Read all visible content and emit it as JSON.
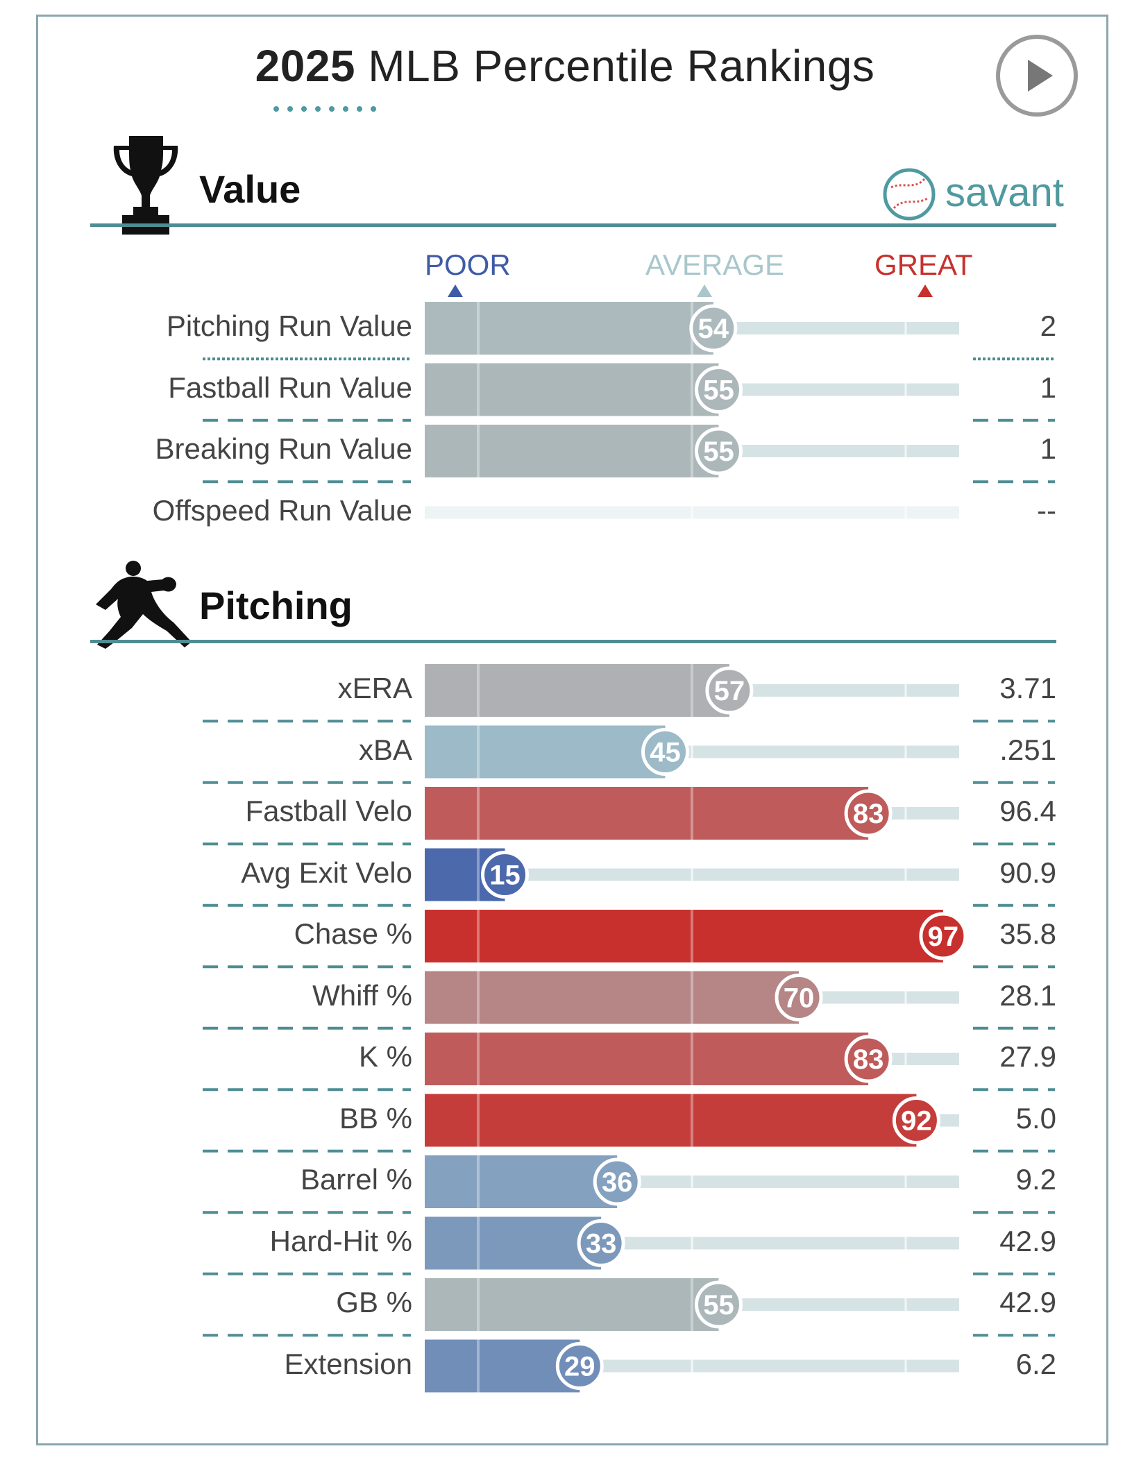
{
  "header": {
    "title_year": "2025",
    "title_rest": " MLB Percentile Rankings",
    "play_button": "play-icon"
  },
  "branding": {
    "logo_icon": "baseball-icon",
    "logo_text": "savant"
  },
  "colors": {
    "accent": "#4f8d94",
    "poor": "#3f5ba8",
    "average": "#a9c7cb",
    "great": "#c7302d",
    "track": "#d6e3e5"
  },
  "scale": {
    "poor": "POOR",
    "average": "AVERAGE",
    "great": "GREAT"
  },
  "chart_data": [
    {
      "type": "bar",
      "title": "Value",
      "section_icon": "trophy-icon",
      "xlim": [
        0,
        100
      ],
      "categories": [
        "Pitching Run Value",
        "Fastball Run Value",
        "Breaking Run Value",
        "Offspeed Run Value"
      ],
      "percentiles": [
        54,
        55,
        55,
        null
      ],
      "values": [
        "2",
        "1",
        "1",
        "--"
      ]
    },
    {
      "type": "bar",
      "title": "Pitching",
      "section_icon": "pitcher-icon",
      "xlim": [
        0,
        100
      ],
      "categories": [
        "xERA",
        "xBA",
        "Fastball Velo",
        "Avg Exit Velo",
        "Chase %",
        "Whiff %",
        "K %",
        "BB %",
        "Barrel %",
        "Hard-Hit %",
        "GB %",
        "Extension"
      ],
      "percentiles": [
        57,
        45,
        83,
        15,
        97,
        70,
        83,
        92,
        36,
        33,
        55,
        29
      ],
      "values": [
        "3.71",
        ".251",
        "96.4",
        "90.9",
        "35.8",
        "28.1",
        "27.9",
        "5.0",
        "9.2",
        "42.9",
        "42.9",
        "6.2"
      ]
    }
  ]
}
